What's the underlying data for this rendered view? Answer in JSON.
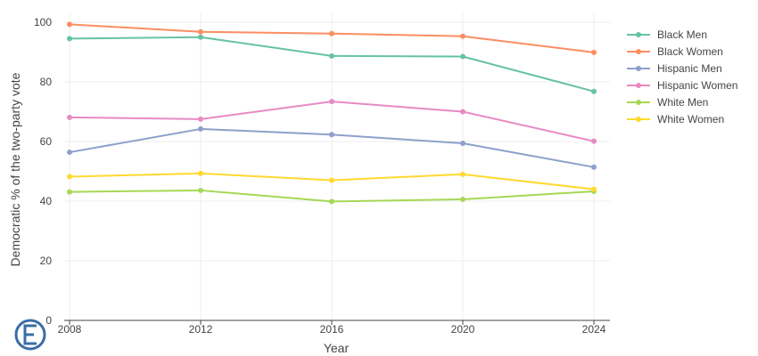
{
  "chart_data": {
    "type": "line",
    "xlabel": "Year",
    "ylabel": "Democratic % of the two-party vote",
    "x": [
      2008,
      2012,
      2016,
      2020,
      2024
    ],
    "xlim": [
      2008,
      2024
    ],
    "ylim": [
      0,
      100
    ],
    "yticks": [
      0,
      20,
      40,
      60,
      80,
      100
    ],
    "grid": true,
    "legend_position": "right",
    "series": [
      {
        "name": "Black Men",
        "color": "#66c2a5",
        "values": [
          94.5,
          95,
          88.7,
          88.5,
          76.8
        ]
      },
      {
        "name": "Black Women",
        "color": "#fc8d62",
        "values": [
          99.3,
          96.8,
          96.2,
          95.3,
          89.9
        ]
      },
      {
        "name": "Hispanic Men",
        "color": "#8da0cb",
        "values": [
          56.4,
          64.2,
          62.3,
          59.4,
          51.4
        ]
      },
      {
        "name": "Hispanic Women",
        "color": "#e78ac3",
        "values": [
          68.1,
          67.5,
          73.4,
          70,
          60.1
        ]
      },
      {
        "name": "White Men",
        "color": "#a6d854",
        "values": [
          43.1,
          43.6,
          39.9,
          40.6,
          43.3
        ]
      },
      {
        "name": "White Women",
        "color": "#ffd92f",
        "values": [
          48.2,
          49.3,
          47,
          49,
          44
        ]
      }
    ]
  },
  "logo": {
    "name": "logo-icon",
    "color": "#3a6ea5"
  }
}
